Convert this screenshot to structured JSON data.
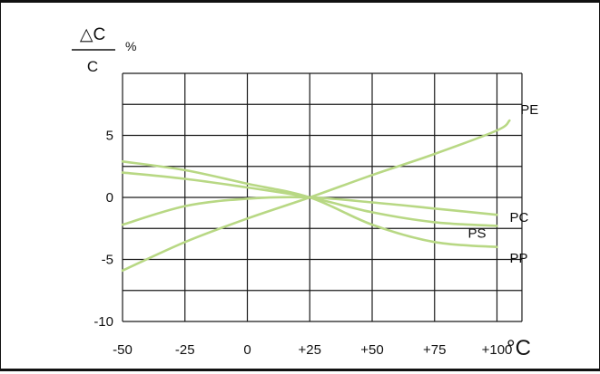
{
  "chart_data": {
    "type": "line",
    "ylabel": {
      "numerator": "△C",
      "denominator": "C",
      "unit": "%"
    },
    "xlabel_unit": "°C",
    "x_ticks": [
      "-50",
      "-25",
      "0",
      "+25",
      "+50",
      "+75",
      "+100"
    ],
    "y_ticks": [
      "-10",
      "-5",
      "0",
      "5"
    ],
    "xlim": [
      -50,
      110
    ],
    "ylim": [
      -10,
      10
    ],
    "grid": true,
    "line_color": "#b8d884",
    "series": [
      {
        "name": "PE",
        "x": [
          -50,
          -25,
          0,
          25,
          50,
          75,
          100,
          105
        ],
        "y": [
          -5.9,
          -3.6,
          -1.7,
          0,
          1.8,
          3.5,
          5.4,
          6.2
        ]
      },
      {
        "name": "PC",
        "x": [
          -50,
          -25,
          0,
          25,
          50,
          75,
          100
        ],
        "y": [
          -2.2,
          -0.7,
          -0.1,
          0,
          -0.4,
          -0.9,
          -1.4
        ]
      },
      {
        "name": "PS",
        "x": [
          -50,
          -25,
          0,
          25,
          50,
          75,
          100
        ],
        "y": [
          2.0,
          1.5,
          0.8,
          0,
          -1.2,
          -2.0,
          -2.3
        ]
      },
      {
        "name": "PP",
        "x": [
          -50,
          -25,
          0,
          25,
          50,
          75,
          100
        ],
        "y": [
          2.9,
          2.2,
          1.1,
          0,
          -2.2,
          -3.6,
          -4.0
        ]
      }
    ]
  }
}
